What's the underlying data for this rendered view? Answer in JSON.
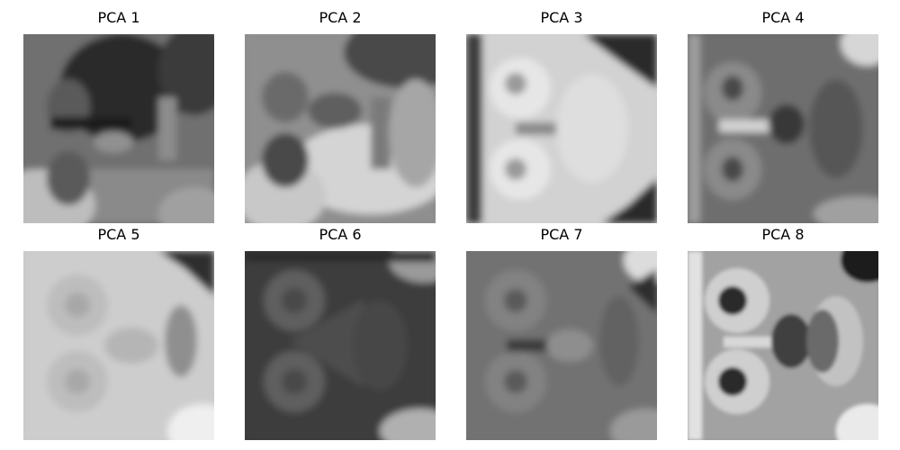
{
  "panels": [
    {
      "title": "PCA 1",
      "image": "grayscale eigenface"
    },
    {
      "title": "PCA 2",
      "image": "grayscale eigenface"
    },
    {
      "title": "PCA 3",
      "image": "grayscale eigenface"
    },
    {
      "title": "PCA 4",
      "image": "grayscale eigenface"
    },
    {
      "title": "PCA 5",
      "image": "grayscale eigenface"
    },
    {
      "title": "PCA 6",
      "image": "grayscale eigenface"
    },
    {
      "title": "PCA 7",
      "image": "grayscale eigenface"
    },
    {
      "title": "PCA 8",
      "image": "grayscale eigenface"
    }
  ]
}
